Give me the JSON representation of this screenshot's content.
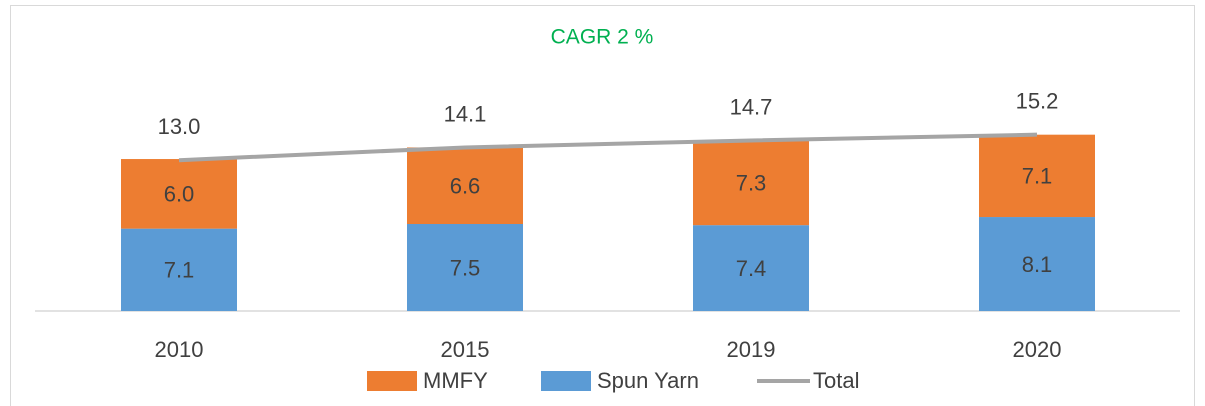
{
  "chart_data": {
    "type": "stacked-bar-line",
    "annotation": "CAGR 2 %",
    "categories": [
      "2010",
      "2015",
      "2019",
      "2020"
    ],
    "series": [
      {
        "name": "MMFY",
        "type": "bar",
        "color": "#ed7d31",
        "values": [
          6.0,
          6.6,
          7.3,
          7.1
        ],
        "value_labels": [
          "6.0",
          "6.6",
          "7.3",
          "7.1"
        ]
      },
      {
        "name": "Spun Yarn",
        "type": "bar",
        "color": "#5b9bd5",
        "values": [
          7.1,
          7.5,
          7.4,
          8.1
        ],
        "value_labels": [
          "7.1",
          "7.5",
          "7.4",
          "8.1"
        ]
      },
      {
        "name": "Total",
        "type": "line",
        "color": "#a5a5a5",
        "values": [
          13.0,
          14.1,
          14.7,
          15.2
        ],
        "value_labels": [
          "13.0",
          "14.1",
          "14.7",
          "15.2"
        ]
      }
    ],
    "legend": "bottom"
  }
}
